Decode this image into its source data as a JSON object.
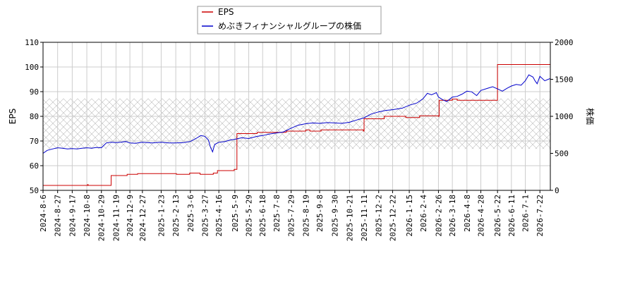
{
  "chart_data": {
    "type": "line",
    "legend": {
      "placement": "top-center",
      "entries": [
        {
          "name": "EPS",
          "color": "#cc0000"
        },
        {
          "name": "めぶきフィナンシャルグループの株価",
          "color": "#0000cc"
        }
      ]
    },
    "ylabel_left": "EPS",
    "ylabel_right": "株価",
    "ylim_left": [
      50,
      110
    ],
    "yticks_left": [
      50,
      60,
      70,
      80,
      90,
      100,
      110
    ],
    "ylim_right": [
      0,
      2000
    ],
    "yticks_right": [
      0,
      500,
      1000,
      1500,
      2000
    ],
    "xlim": [
      "2024-08-06",
      "2026-08-06"
    ],
    "xticks": [
      "2024-8-6",
      "2024-8-27",
      "2024-9-17",
      "2024-10-8",
      "2024-10-29",
      "2024-11-19",
      "2024-12-9",
      "2024-12-27",
      "2025-1-23",
      "2025-2-13",
      "2025-3-6",
      "2025-3-27",
      "2025-4-16",
      "2025-5-9",
      "2025-5-29",
      "2025-6-18",
      "2025-7-8",
      "2025-7-29",
      "2025-8-19",
      "2025-9-8",
      "2025-9-30",
      "2025-10-21",
      "2025-11-11",
      "2025-12-2",
      "2025-12-22",
      "2026-1-15",
      "2026-2-4",
      "2026-2-26",
      "2026-3-18",
      "2026-4-8",
      "2026-4-28",
      "2026-5-22",
      "2026-6-11",
      "2026-7-1",
      "2026-7-22"
    ],
    "grid": true,
    "hatched_band_right": [
      560,
      1240
    ],
    "series": [
      {
        "name": "EPS",
        "axis": "left",
        "step": true,
        "color": "#cc0000",
        "points": [
          [
            "2024-08-06",
            52.0
          ],
          [
            "2024-10-08",
            52.0
          ],
          [
            "2024-10-09",
            52.3
          ],
          [
            "2024-10-10",
            52.0
          ],
          [
            "2024-11-11",
            52.0
          ],
          [
            "2024-11-12",
            56.0
          ],
          [
            "2024-12-05",
            56.5
          ],
          [
            "2024-12-20",
            56.8
          ],
          [
            "2025-02-10",
            56.8
          ],
          [
            "2025-02-14",
            56.5
          ],
          [
            "2025-03-05",
            57.0
          ],
          [
            "2025-03-20",
            56.5
          ],
          [
            "2025-04-08",
            57.0
          ],
          [
            "2025-04-14",
            58.0
          ],
          [
            "2025-05-08",
            58.5
          ],
          [
            "2025-05-12",
            73.0
          ],
          [
            "2025-06-10",
            73.5
          ],
          [
            "2025-07-15",
            73.5
          ],
          [
            "2025-07-22",
            74.0
          ],
          [
            "2025-08-12",
            74.0
          ],
          [
            "2025-08-19",
            74.5
          ],
          [
            "2025-08-25",
            74.0
          ],
          [
            "2025-09-10",
            74.5
          ],
          [
            "2025-11-10",
            74.0
          ],
          [
            "2025-11-11",
            79.0
          ],
          [
            "2025-12-10",
            80.0
          ],
          [
            "2026-01-10",
            79.5
          ],
          [
            "2026-01-30",
            80.2
          ],
          [
            "2026-02-26",
            80.0
          ],
          [
            "2026-02-27",
            86.5
          ],
          [
            "2026-03-18",
            87.0
          ],
          [
            "2026-03-25",
            86.5
          ],
          [
            "2026-05-21",
            86.5
          ],
          [
            "2026-05-22",
            101.0
          ],
          [
            "2026-08-06",
            101.0
          ]
        ]
      },
      {
        "name": "めぶきフィナンシャルグループの株価",
        "axis": "right",
        "color": "#0000cc",
        "points": [
          [
            "2024-08-06",
            500
          ],
          [
            "2024-08-12",
            540
          ],
          [
            "2024-08-20",
            560
          ],
          [
            "2024-08-27",
            575
          ],
          [
            "2024-09-03",
            570
          ],
          [
            "2024-09-10",
            560
          ],
          [
            "2024-09-17",
            565
          ],
          [
            "2024-09-24",
            560
          ],
          [
            "2024-10-01",
            570
          ],
          [
            "2024-10-08",
            575
          ],
          [
            "2024-10-15",
            570
          ],
          [
            "2024-10-22",
            580
          ],
          [
            "2024-10-29",
            575
          ],
          [
            "2024-11-05",
            640
          ],
          [
            "2024-11-12",
            650
          ],
          [
            "2024-11-19",
            645
          ],
          [
            "2024-11-26",
            650
          ],
          [
            "2024-12-03",
            660
          ],
          [
            "2024-12-09",
            640
          ],
          [
            "2024-12-17",
            635
          ],
          [
            "2024-12-27",
            650
          ],
          [
            "2025-01-10",
            640
          ],
          [
            "2025-01-23",
            650
          ],
          [
            "2025-02-03",
            640
          ],
          [
            "2025-02-13",
            640
          ],
          [
            "2025-02-24",
            645
          ],
          [
            "2025-03-06",
            660
          ],
          [
            "2025-03-14",
            700
          ],
          [
            "2025-03-21",
            740
          ],
          [
            "2025-03-27",
            730
          ],
          [
            "2025-04-01",
            680
          ],
          [
            "2025-04-04",
            580
          ],
          [
            "2025-04-07",
            520
          ],
          [
            "2025-04-10",
            620
          ],
          [
            "2025-04-16",
            650
          ],
          [
            "2025-04-25",
            660
          ],
          [
            "2025-05-02",
            680
          ],
          [
            "2025-05-09",
            690
          ],
          [
            "2025-05-19",
            710
          ],
          [
            "2025-05-29",
            700
          ],
          [
            "2025-06-10",
            730
          ],
          [
            "2025-06-18",
            740
          ],
          [
            "2025-06-27",
            760
          ],
          [
            "2025-07-08",
            775
          ],
          [
            "2025-07-18",
            790
          ],
          [
            "2025-07-29",
            840
          ],
          [
            "2025-08-08",
            880
          ],
          [
            "2025-08-19",
            900
          ],
          [
            "2025-08-29",
            910
          ],
          [
            "2025-09-08",
            905
          ],
          [
            "2025-09-19",
            915
          ],
          [
            "2025-09-30",
            910
          ],
          [
            "2025-10-10",
            905
          ],
          [
            "2025-10-21",
            920
          ],
          [
            "2025-10-31",
            950
          ],
          [
            "2025-11-11",
            980
          ],
          [
            "2025-11-21",
            1030
          ],
          [
            "2025-12-02",
            1060
          ],
          [
            "2025-12-12",
            1080
          ],
          [
            "2025-12-22",
            1090
          ],
          [
            "2026-01-05",
            1110
          ],
          [
            "2026-01-15",
            1150
          ],
          [
            "2026-01-26",
            1180
          ],
          [
            "2026-02-04",
            1240
          ],
          [
            "2026-02-10",
            1310
          ],
          [
            "2026-02-16",
            1290
          ],
          [
            "2026-02-23",
            1320
          ],
          [
            "2026-02-26",
            1260
          ],
          [
            "2026-03-05",
            1220
          ],
          [
            "2026-03-10",
            1200
          ],
          [
            "2026-03-18",
            1260
          ],
          [
            "2026-03-25",
            1270
          ],
          [
            "2026-04-01",
            1300
          ],
          [
            "2026-04-08",
            1340
          ],
          [
            "2026-04-15",
            1330
          ],
          [
            "2026-04-22",
            1280
          ],
          [
            "2026-04-28",
            1350
          ],
          [
            "2026-05-08",
            1380
          ],
          [
            "2026-05-15",
            1400
          ],
          [
            "2026-05-22",
            1370
          ],
          [
            "2026-05-29",
            1340
          ],
          [
            "2026-06-05",
            1380
          ],
          [
            "2026-06-11",
            1410
          ],
          [
            "2026-06-18",
            1430
          ],
          [
            "2026-06-25",
            1420
          ],
          [
            "2026-07-01",
            1480
          ],
          [
            "2026-07-06",
            1560
          ],
          [
            "2026-07-12",
            1530
          ],
          [
            "2026-07-15",
            1480
          ],
          [
            "2026-07-18",
            1440
          ],
          [
            "2026-07-22",
            1540
          ],
          [
            "2026-07-29",
            1480
          ],
          [
            "2026-08-03",
            1500
          ],
          [
            "2026-08-06",
            1510
          ]
        ]
      }
    ]
  }
}
